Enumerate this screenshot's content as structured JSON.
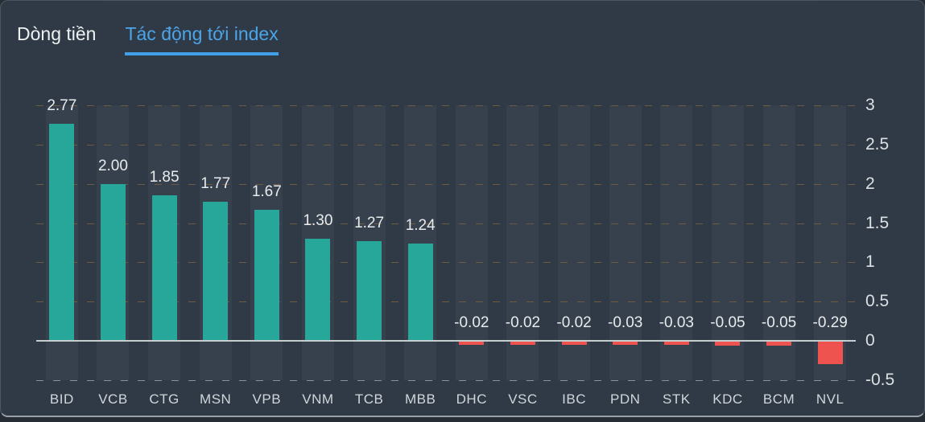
{
  "tabs": {
    "items": [
      {
        "label": "Dòng tiền",
        "active": false
      },
      {
        "label": "Tác động tới index",
        "active": true
      }
    ]
  },
  "theme": {
    "panel_bg": "#2F3A46",
    "stripe": "#36414D",
    "zero_line": "#C8CDD1",
    "grid_dash": "#6F5C40",
    "grid_dash_bottom": "#8D9094",
    "tab_active": "#4BA5E8",
    "tab_underline": "#42A0E8",
    "value_label": "#E8EBED",
    "x_label": "#D0D6DA",
    "y_label": "#DCE0E3"
  },
  "chart_data": {
    "type": "bar",
    "title": "Tác động tới index",
    "categories": [
      "BID",
      "VCB",
      "CTG",
      "MSN",
      "VPB",
      "VNM",
      "TCB",
      "MBB",
      "DHC",
      "VSC",
      "IBC",
      "PDN",
      "STK",
      "KDC",
      "BCM",
      "NVL"
    ],
    "values": [
      2.77,
      2.0,
      1.85,
      1.77,
      1.67,
      1.3,
      1.27,
      1.24,
      -0.02,
      -0.02,
      -0.02,
      -0.03,
      -0.03,
      -0.05,
      -0.05,
      -0.29
    ],
    "value_labels": [
      "2.77",
      "2.00",
      "1.85",
      "1.77",
      "1.67",
      "1.30",
      "1.27",
      "1.24",
      "-0.02",
      "-0.02",
      "-0.02",
      "-0.03",
      "-0.03",
      "-0.05",
      "-0.05",
      "-0.29"
    ],
    "y_ticks": [
      "3",
      "2.5",
      "2",
      "1.5",
      "1",
      "0.5",
      "0",
      "-0.5"
    ],
    "ylim": [
      -0.5,
      3
    ],
    "xlabel": "",
    "ylabel": "",
    "grid": "horizontal-dashed",
    "legend": "none",
    "axis_side": "right",
    "bar_positive_color": "#27A69A",
    "bar_negative_color": "#EF5350"
  }
}
